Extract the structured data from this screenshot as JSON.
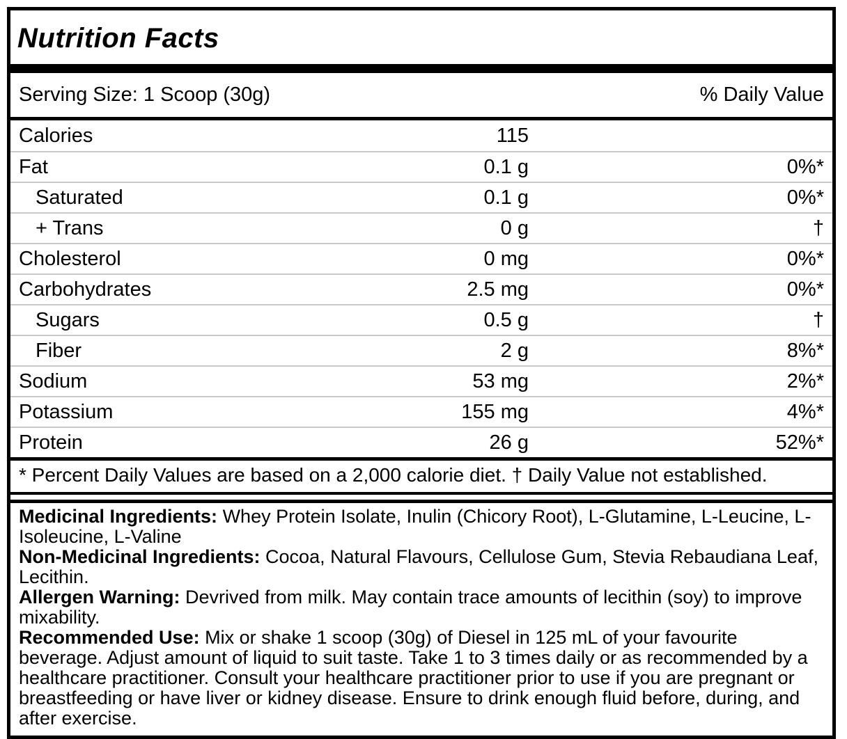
{
  "label": {
    "title": "Nutrition Facts",
    "serving_size": "Serving Size: 1 Scoop (30g)",
    "daily_value_header": "% Daily Value",
    "rows": [
      {
        "name": "Calories",
        "amount": "115",
        "dv": "",
        "indent": false
      },
      {
        "name": "Fat",
        "amount": "0.1 g",
        "dv": "0%*",
        "indent": false
      },
      {
        "name": "Saturated",
        "amount": "0.1 g",
        "dv": "0%*",
        "indent": true
      },
      {
        "name": "+ Trans",
        "amount": "0 g",
        "dv": "†",
        "indent": true
      },
      {
        "name": "Cholesterol",
        "amount": "0 mg",
        "dv": "0%*",
        "indent": false
      },
      {
        "name": "Carbohydrates",
        "amount": "2.5 mg",
        "dv": "0%*",
        "indent": false
      },
      {
        "name": "Sugars",
        "amount": "0.5 g",
        "dv": "†",
        "indent": true
      },
      {
        "name": "Fiber",
        "amount": "2 g",
        "dv": "8%*",
        "indent": true
      },
      {
        "name": "Sodium",
        "amount": "53 mg",
        "dv": "2%*",
        "indent": false
      },
      {
        "name": "Potassium",
        "amount": "155 mg",
        "dv": "4%*",
        "indent": false
      },
      {
        "name": "Protein",
        "amount": "26 g",
        "dv": "52%*",
        "indent": false
      }
    ],
    "footnote": "* Percent Daily Values are based on a 2,000 calorie diet. † Daily Value not established.",
    "info_sections": [
      {
        "heading": "Medicinal Ingredients:",
        "text": "Whey Protein Isolate, Inulin (Chicory Root), L-Glutamine, L-Leucine, L-Isoleucine, L-Valine"
      },
      {
        "heading": "Non-Medicinal Ingredients:",
        "text": "Cocoa, Natural Flavours, Cellulose Gum, Stevia Rebaudiana Leaf, Lecithin."
      },
      {
        "heading": "Allergen Warning:",
        "text": "Devrived from milk. May contain trace amounts of lecithin (soy) to improve mixability."
      },
      {
        "heading": "Recommended Use:",
        "text": "Mix or shake 1 scoop (30g) of Diesel in 125 mL of your favourite beverage. Adjust amount of liquid to suit taste. Take 1 to 3 times daily or as recommended by a healthcare practitioner. Consult your healthcare practitioner prior to use if you are pregnant or breastfeeding or have liver or kidney disease. Ensure to drink enough fluid before, during, and after exercise."
      }
    ],
    "colors": {
      "border": "#000000",
      "row_divider": "#c9c9c9",
      "text": "#000000",
      "background": "#ffffff"
    }
  }
}
